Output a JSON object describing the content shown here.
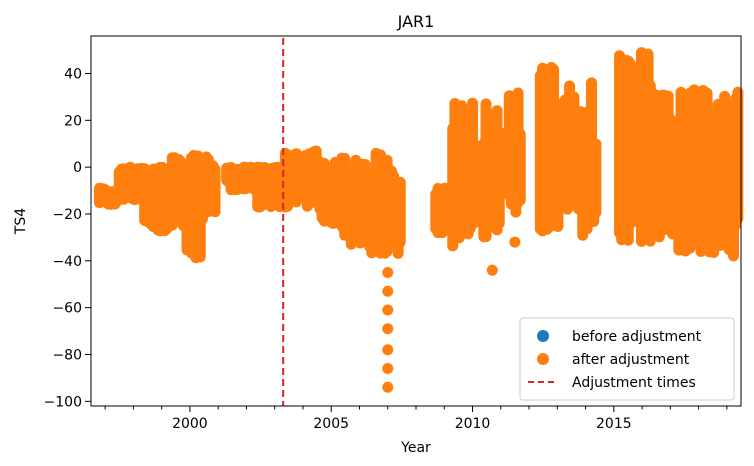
{
  "chart_data": {
    "type": "scatter",
    "title": "JAR1",
    "xlabel": "Year",
    "ylabel": "TS4",
    "xlim": [
      1996.5,
      2019.5
    ],
    "ylim": [
      -102,
      56
    ],
    "xticks": [
      2000,
      2005,
      2010,
      2015
    ],
    "xtick_labels": [
      "2000",
      "2005",
      "2010",
      "2015"
    ],
    "yticks": [
      -100,
      -80,
      -60,
      -40,
      -20,
      0,
      20,
      40
    ],
    "ytick_labels": [
      "−100",
      "−80",
      "−60",
      "−40",
      "−20",
      "0",
      "20",
      "40"
    ],
    "grid": false,
    "legend_position": "lower-right",
    "adjustment_times": [
      2003.3
    ],
    "outliers": {
      "x": [
        2007.0,
        2007.0,
        2007.0,
        2007.0,
        2007.0,
        2007.0,
        2007.0,
        2010.7,
        2011.5
      ],
      "y": [
        -45,
        -53,
        -61,
        -69,
        -78,
        -86,
        -94,
        -44,
        -32
      ]
    },
    "segments": [
      {
        "start": 1996.8,
        "end": 1997.5,
        "min": -16,
        "max": -9
      },
      {
        "start": 1997.5,
        "end": 1998.4,
        "min": -14,
        "max": 0
      },
      {
        "start": 1998.4,
        "end": 1999.3,
        "min": -28,
        "max": 0
      },
      {
        "start": 1999.3,
        "end": 1999.9,
        "min": -25,
        "max": 4
      },
      {
        "start": 1999.9,
        "end": 2000.5,
        "min": -39,
        "max": 5
      },
      {
        "start": 2000.5,
        "end": 2000.9,
        "min": -20,
        "max": 5
      },
      {
        "start": 2001.3,
        "end": 2002.4,
        "min": -10,
        "max": 0
      },
      {
        "start": 2002.4,
        "end": 2003.3,
        "min": -17,
        "max": 0
      },
      {
        "start": 2003.3,
        "end": 2004.6,
        "min": -17,
        "max": 7
      },
      {
        "start": 2004.6,
        "end": 2005.4,
        "min": -24,
        "max": 4
      },
      {
        "start": 2005.4,
        "end": 2006.2,
        "min": -33,
        "max": 4
      },
      {
        "start": 2006.2,
        "end": 2006.9,
        "min": -37,
        "max": 6
      },
      {
        "start": 2006.9,
        "end": 2007.5,
        "min": -37,
        "max": 3
      },
      {
        "start": 2008.7,
        "end": 2009.3,
        "min": -28,
        "max": -9
      },
      {
        "start": 2009.3,
        "end": 2010.1,
        "min": -34,
        "max": 28
      },
      {
        "start": 2010.4,
        "end": 2011.0,
        "min": -30,
        "max": 28
      },
      {
        "start": 2011.3,
        "end": 2011.7,
        "min": -20,
        "max": 32
      },
      {
        "start": 2012.4,
        "end": 2013.1,
        "min": -28,
        "max": 43
      },
      {
        "start": 2013.2,
        "end": 2013.9,
        "min": -18,
        "max": 37
      },
      {
        "start": 2013.9,
        "end": 2014.4,
        "min": -30,
        "max": 36
      },
      {
        "start": 2015.2,
        "end": 2016.3,
        "min": -32,
        "max": 49
      },
      {
        "start": 2016.3,
        "end": 2017.3,
        "min": -30,
        "max": 31
      },
      {
        "start": 2017.3,
        "end": 2018.2,
        "min": -36,
        "max": 33
      },
      {
        "start": 2018.3,
        "end": 2019.4,
        "min": -38,
        "max": 32
      }
    ],
    "series": [
      {
        "name": "before adjustment",
        "color": "#1f77b4",
        "marker": "circle"
      },
      {
        "name": "after adjustment",
        "color": "#ff7f0e",
        "marker": "circle"
      },
      {
        "name": "Adjustment times",
        "color": "#d62728",
        "style": "dashed-line"
      }
    ]
  }
}
